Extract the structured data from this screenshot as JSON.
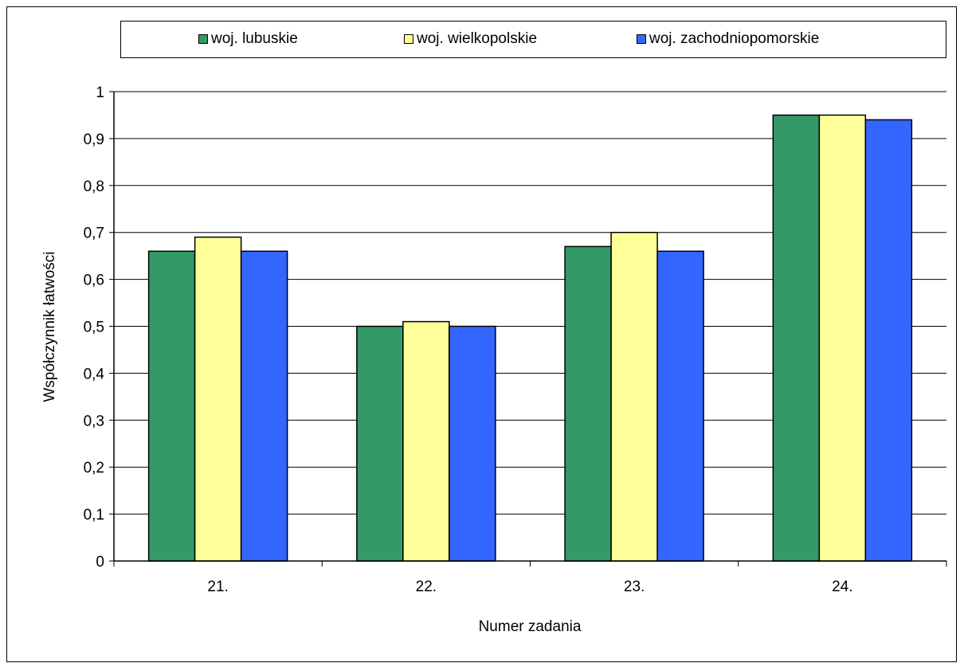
{
  "chart_data": {
    "type": "bar",
    "title": "",
    "xlabel": "Numer zadania",
    "ylabel": "Współczynnik łatwości",
    "categories": [
      "21.",
      "22.",
      "23.",
      "24."
    ],
    "ylim": [
      0,
      1
    ],
    "yticks": [
      0,
      0.1,
      0.2,
      0.3,
      0.4,
      0.5,
      0.6,
      0.7,
      0.8,
      0.9,
      1
    ],
    "ytick_labels": [
      "0",
      "0,1",
      "0,2",
      "0,3",
      "0,4",
      "0,5",
      "0,6",
      "0,7",
      "0,8",
      "0,9",
      "1"
    ],
    "grid": true,
    "legend_position": "top",
    "series": [
      {
        "name": "woj. lubuskie",
        "color": "#339966",
        "values": [
          0.66,
          0.5,
          0.67,
          0.95
        ]
      },
      {
        "name": "woj. wielkopolskie",
        "color": "#ffff99",
        "values": [
          0.69,
          0.51,
          0.7,
          0.95
        ]
      },
      {
        "name": "woj. zachodniopomorskie",
        "color": "#3366ff",
        "values": [
          0.66,
          0.5,
          0.66,
          0.94
        ]
      }
    ]
  }
}
